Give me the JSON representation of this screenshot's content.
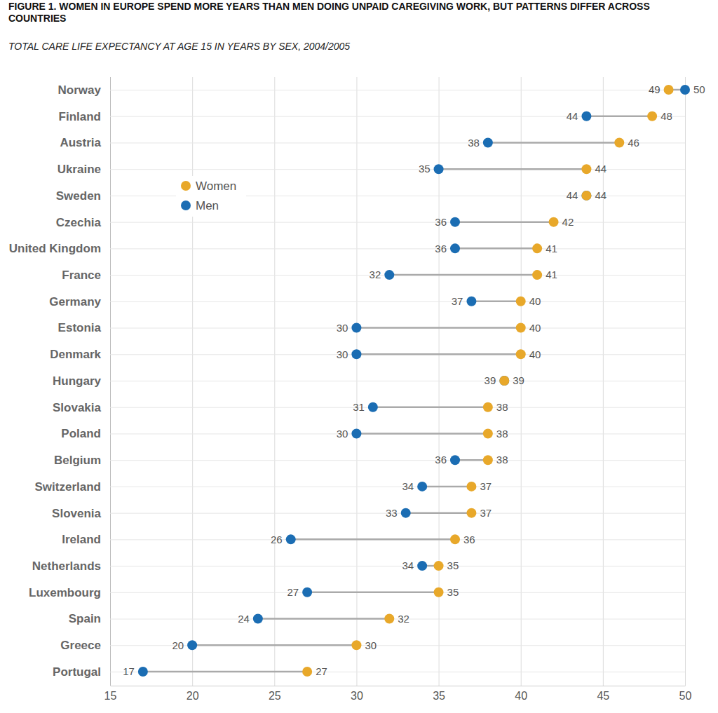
{
  "chart_data": {
    "type": "dumbbell",
    "title": "FIGURE 1. WOMEN IN EUROPE SPEND MORE YEARS THAN MEN DOING UNPAID CAREGIVING WORK, BUT PATTERNS DIFFER ACROSS COUNTRIES",
    "subtitle": "TOTAL CARE LIFE EXPECTANCY AT AGE 15 IN YEARS BY SEX, 2004/2005",
    "categories": [
      "Norway",
      "Finland",
      "Austria",
      "Ukraine",
      "Sweden",
      "Czechia",
      "United Kingdom",
      "France",
      "Germany",
      "Estonia",
      "Denmark",
      "Hungary",
      "Slovakia",
      "Poland",
      "Belgium",
      "Switzerland",
      "Slovenia",
      "Ireland",
      "Netherlands",
      "Luxembourg",
      "Spain",
      "Greece",
      "Portugal"
    ],
    "series": [
      {
        "name": "Women",
        "color": "#e8a82a",
        "values": [
          49,
          48,
          46,
          44,
          44,
          42,
          41,
          41,
          40,
          40,
          40,
          39,
          38,
          38,
          38,
          37,
          37,
          36,
          35,
          35,
          32,
          30,
          27
        ]
      },
      {
        "name": "Men",
        "color": "#1b6db3",
        "values": [
          50,
          44,
          38,
          35,
          44,
          36,
          36,
          32,
          37,
          30,
          30,
          39,
          31,
          30,
          36,
          34,
          33,
          26,
          34,
          27,
          24,
          20,
          17
        ]
      }
    ],
    "xlim": [
      15,
      50
    ],
    "xticks": [
      15,
      20,
      25,
      30,
      35,
      40,
      45,
      50
    ],
    "orientation": "horizontal",
    "grid": true,
    "legend": "upper left",
    "data_labels": true
  }
}
